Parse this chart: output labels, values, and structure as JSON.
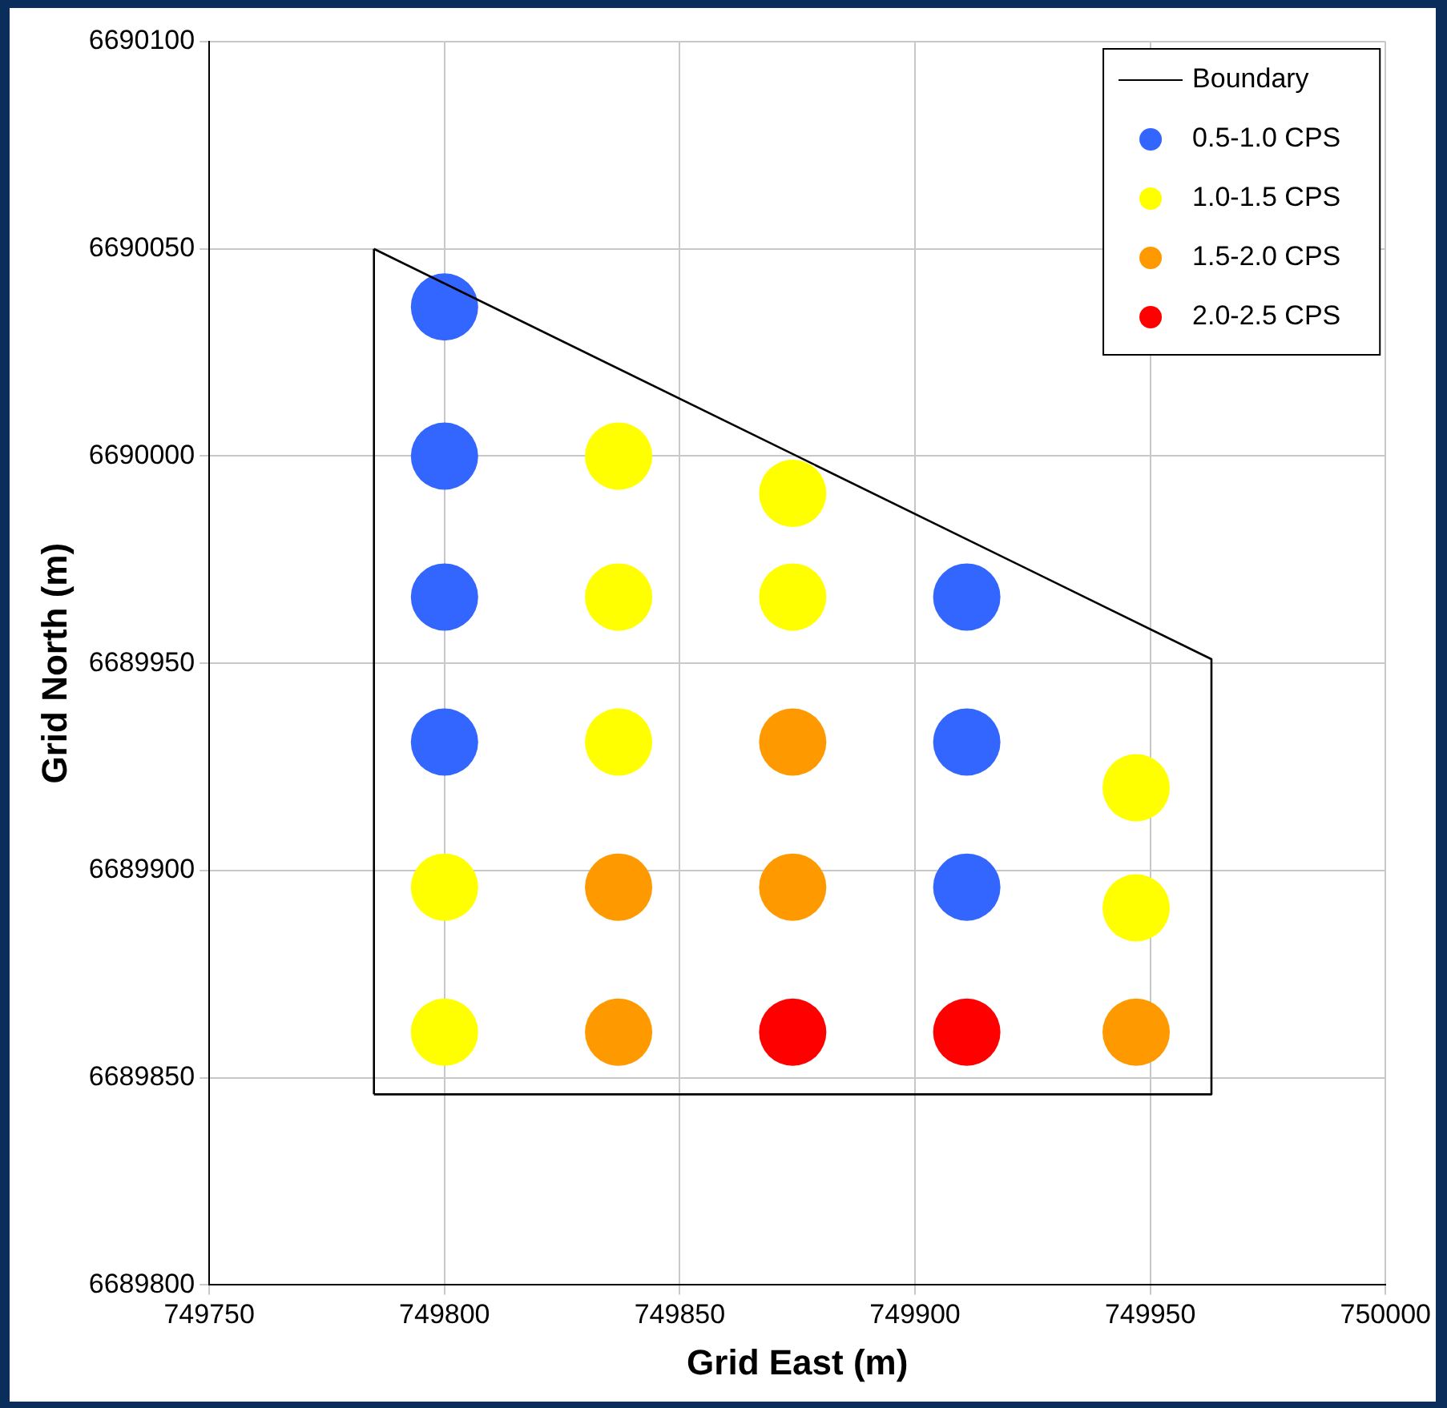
{
  "chart_data": {
    "type": "scatter",
    "xlabel": "Grid East (m)",
    "ylabel": "Grid North (m)",
    "xlim": [
      749750,
      750000
    ],
    "xticks": [
      749750,
      749800,
      749850,
      749900,
      749950,
      750000
    ],
    "ylim": [
      6689800,
      6690100
    ],
    "yticks": [
      6689800,
      6689850,
      6689900,
      6689950,
      6690000,
      6690050,
      6690100
    ],
    "grid": true,
    "legend": "top right",
    "series": [
      {
        "name": "Boundary",
        "type": "line",
        "color": "#000000",
        "marker": "none",
        "line_style": "solid",
        "x": [
          749785,
          749963,
          749963,
          749785
        ],
        "values": [
          6690050,
          6689951,
          6689846,
          6689846
        ]
      },
      {
        "type": "line",
        "color": "#000000",
        "marker": "none",
        "line_style": "solid",
        "x": [
          749785,
          749785
        ],
        "values": [
          6689846,
          6690050
        ]
      },
      {
        "name": "0.5-1.0 CPS",
        "type": "scatter",
        "color": "#3366ff",
        "marker": "circle",
        "x": [
          749800,
          749800,
          749800,
          749800,
          749911,
          749911,
          749911
        ],
        "values": [
          6690036,
          6690000,
          6689966,
          6689931,
          6689966,
          6689931,
          6689896
        ]
      },
      {
        "name": "1.0-1.5 CPS",
        "type": "scatter",
        "color": "#ffff00",
        "marker": "circle",
        "x": [
          749837,
          749874,
          749837,
          749874,
          749837,
          749800,
          749800,
          749947,
          749947
        ],
        "values": [
          6690000,
          6689991,
          6689966,
          6689966,
          6689931,
          6689896,
          6689861,
          6689920,
          6689891
        ]
      },
      {
        "name": "1.5-2.0 CPS",
        "type": "scatter",
        "color": "#ff9900",
        "marker": "circle",
        "x": [
          749874,
          749837,
          749874,
          749837,
          749947
        ],
        "values": [
          6689931,
          6689896,
          6689896,
          6689861,
          6689861
        ]
      },
      {
        "name": "2.0-2.5 CPS",
        "type": "scatter",
        "color": "#ff0000",
        "marker": "circle",
        "x": [
          749874,
          749911
        ],
        "values": [
          6689861,
          6689861
        ]
      }
    ]
  }
}
